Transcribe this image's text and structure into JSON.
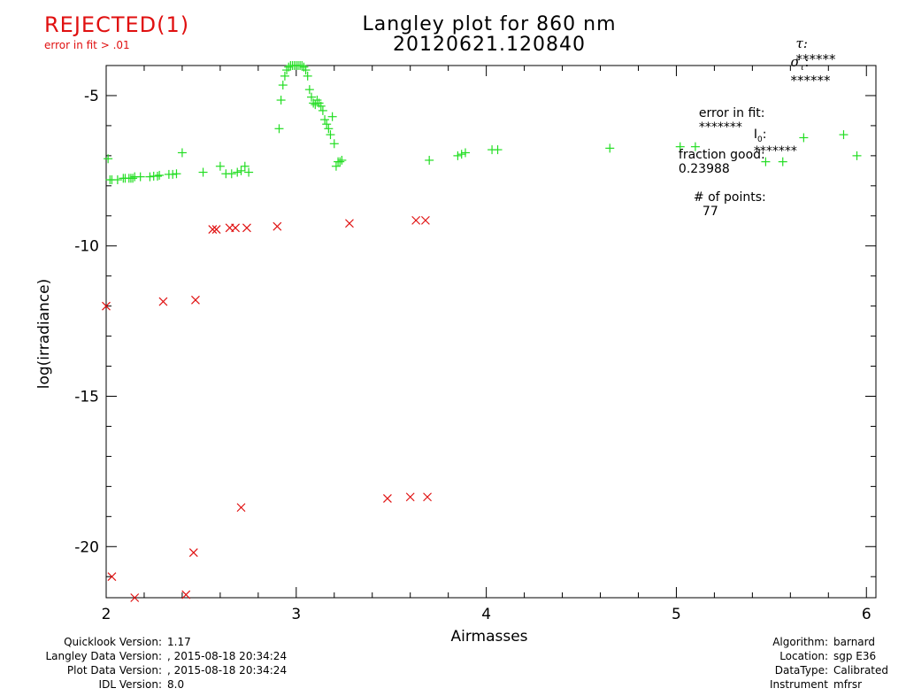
{
  "header": {
    "status": "REJECTED(1)",
    "status_reason": "error in fit > .01",
    "tau_label": "τ:",
    "tau_value": "******",
    "sigma_label": "σ",
    "sigma_sub": "τ",
    "sigma_colon": ":",
    "sigma_value": "******"
  },
  "stats": {
    "error_label": "error in fit:",
    "error_value": "*******",
    "i0_label": "I",
    "i0_sub": "0",
    "i0_colon": ":",
    "i0_value": "*******",
    "fraction_label": "fraction good:",
    "fraction_value": "0.23988",
    "points_label": "# of points:",
    "points_value": "77"
  },
  "footer": {
    "left": [
      {
        "label": "Quicklook Version:",
        "value": "1.17"
      },
      {
        "label": "Langley Data Version:",
        "value": ", 2015-08-18 20:34:24"
      },
      {
        "label": "Plot Data Version:",
        "value": ", 2015-08-18 20:34:24"
      },
      {
        "label": "IDL Version:",
        "value": "8.0"
      }
    ],
    "right": [
      {
        "label": "Algorithm:",
        "value": "barnard"
      },
      {
        "label": "Location:",
        "value": "sgp E36"
      },
      {
        "label": "DataType:",
        "value": "Calibrated"
      },
      {
        "label": "Instrument",
        "value": "mfrsr"
      }
    ]
  },
  "colors": {
    "good": "#22dd22",
    "rejected": "#e01010",
    "axis": "#000000"
  },
  "chart_data": {
    "type": "scatter",
    "title": "Langley plot for 860 nm",
    "subtitle": "20120621.120840",
    "xlabel": "Airmasses",
    "ylabel": "log(irradiance)",
    "xlim": [
      2,
      6.05
    ],
    "ylim": [
      -21.7,
      -4.0
    ],
    "xticks": [
      2,
      3,
      4,
      5,
      6
    ],
    "yticks": [
      -5,
      -10,
      -15,
      -20
    ],
    "grid": false,
    "series": [
      {
        "marker": "plus",
        "color": "#22dd22",
        "x": [
          2.01,
          2.02,
          2.03,
          2.06,
          2.09,
          2.1,
          2.12,
          2.13,
          2.14,
          2.15,
          2.18,
          2.23,
          2.25,
          2.27,
          2.28,
          2.33,
          2.35,
          2.37,
          2.4,
          2.51,
          2.6,
          2.63,
          2.66,
          2.69,
          2.71,
          2.73,
          2.75,
          2.91,
          2.92,
          2.93,
          2.94,
          2.95,
          2.96,
          2.97,
          2.98,
          2.99,
          3.0,
          3.01,
          3.02,
          3.03,
          3.04,
          3.05,
          3.06,
          3.07,
          3.08,
          3.09,
          3.1,
          3.11,
          3.12,
          3.13,
          3.14,
          3.15,
          3.16,
          3.17,
          3.18,
          3.19,
          3.2,
          3.21,
          3.22,
          3.23,
          3.24,
          3.7,
          3.85,
          3.87,
          3.89,
          4.03,
          4.06,
          4.65,
          5.02,
          5.1,
          5.47,
          5.56,
          5.67,
          5.88,
          5.95
        ],
        "y": [
          -7.1,
          -7.8,
          -7.8,
          -7.8,
          -7.75,
          -7.75,
          -7.75,
          -7.75,
          -7.75,
          -7.7,
          -7.7,
          -7.7,
          -7.68,
          -7.68,
          -7.65,
          -7.62,
          -7.62,
          -7.6,
          -6.9,
          -7.55,
          -7.35,
          -7.6,
          -7.6,
          -7.55,
          -7.5,
          -7.35,
          -7.55,
          -6.1,
          -5.15,
          -4.65,
          -4.35,
          -4.15,
          -4.05,
          -4.0,
          -4.0,
          -4.0,
          -4.0,
          -4.0,
          -4.0,
          -4.0,
          -4.05,
          -4.15,
          -4.35,
          -4.8,
          -5.05,
          -5.25,
          -5.3,
          -5.15,
          -5.25,
          -5.35,
          -5.5,
          -5.8,
          -5.95,
          -6.1,
          -6.3,
          -5.7,
          -6.6,
          -7.35,
          -7.2,
          -7.2,
          -7.15,
          -7.15,
          -7.0,
          -6.95,
          -6.9,
          -6.8,
          -6.8,
          -6.75,
          -6.7,
          -6.7,
          -7.2,
          -7.2,
          -6.4,
          -6.3,
          -7.0
        ],
        "x_note": "",
        "_": ""
      },
      {
        "marker": "x",
        "color": "#e01010",
        "x": [
          2.0,
          2.03,
          2.15,
          2.3,
          2.42,
          2.46,
          2.47,
          2.56,
          2.58,
          2.65,
          2.68,
          2.71,
          2.74,
          2.9,
          3.28,
          3.48,
          3.6,
          3.63,
          3.68,
          3.69
        ],
        "y": [
          -12.0,
          -21.0,
          -21.7,
          -11.85,
          -21.6,
          -20.2,
          -11.8,
          -9.45,
          -9.45,
          -9.4,
          -9.4,
          -18.7,
          -9.4,
          -9.35,
          -9.25,
          -18.4,
          -18.35,
          -9.15,
          -9.15,
          -18.35
        ]
      }
    ]
  }
}
